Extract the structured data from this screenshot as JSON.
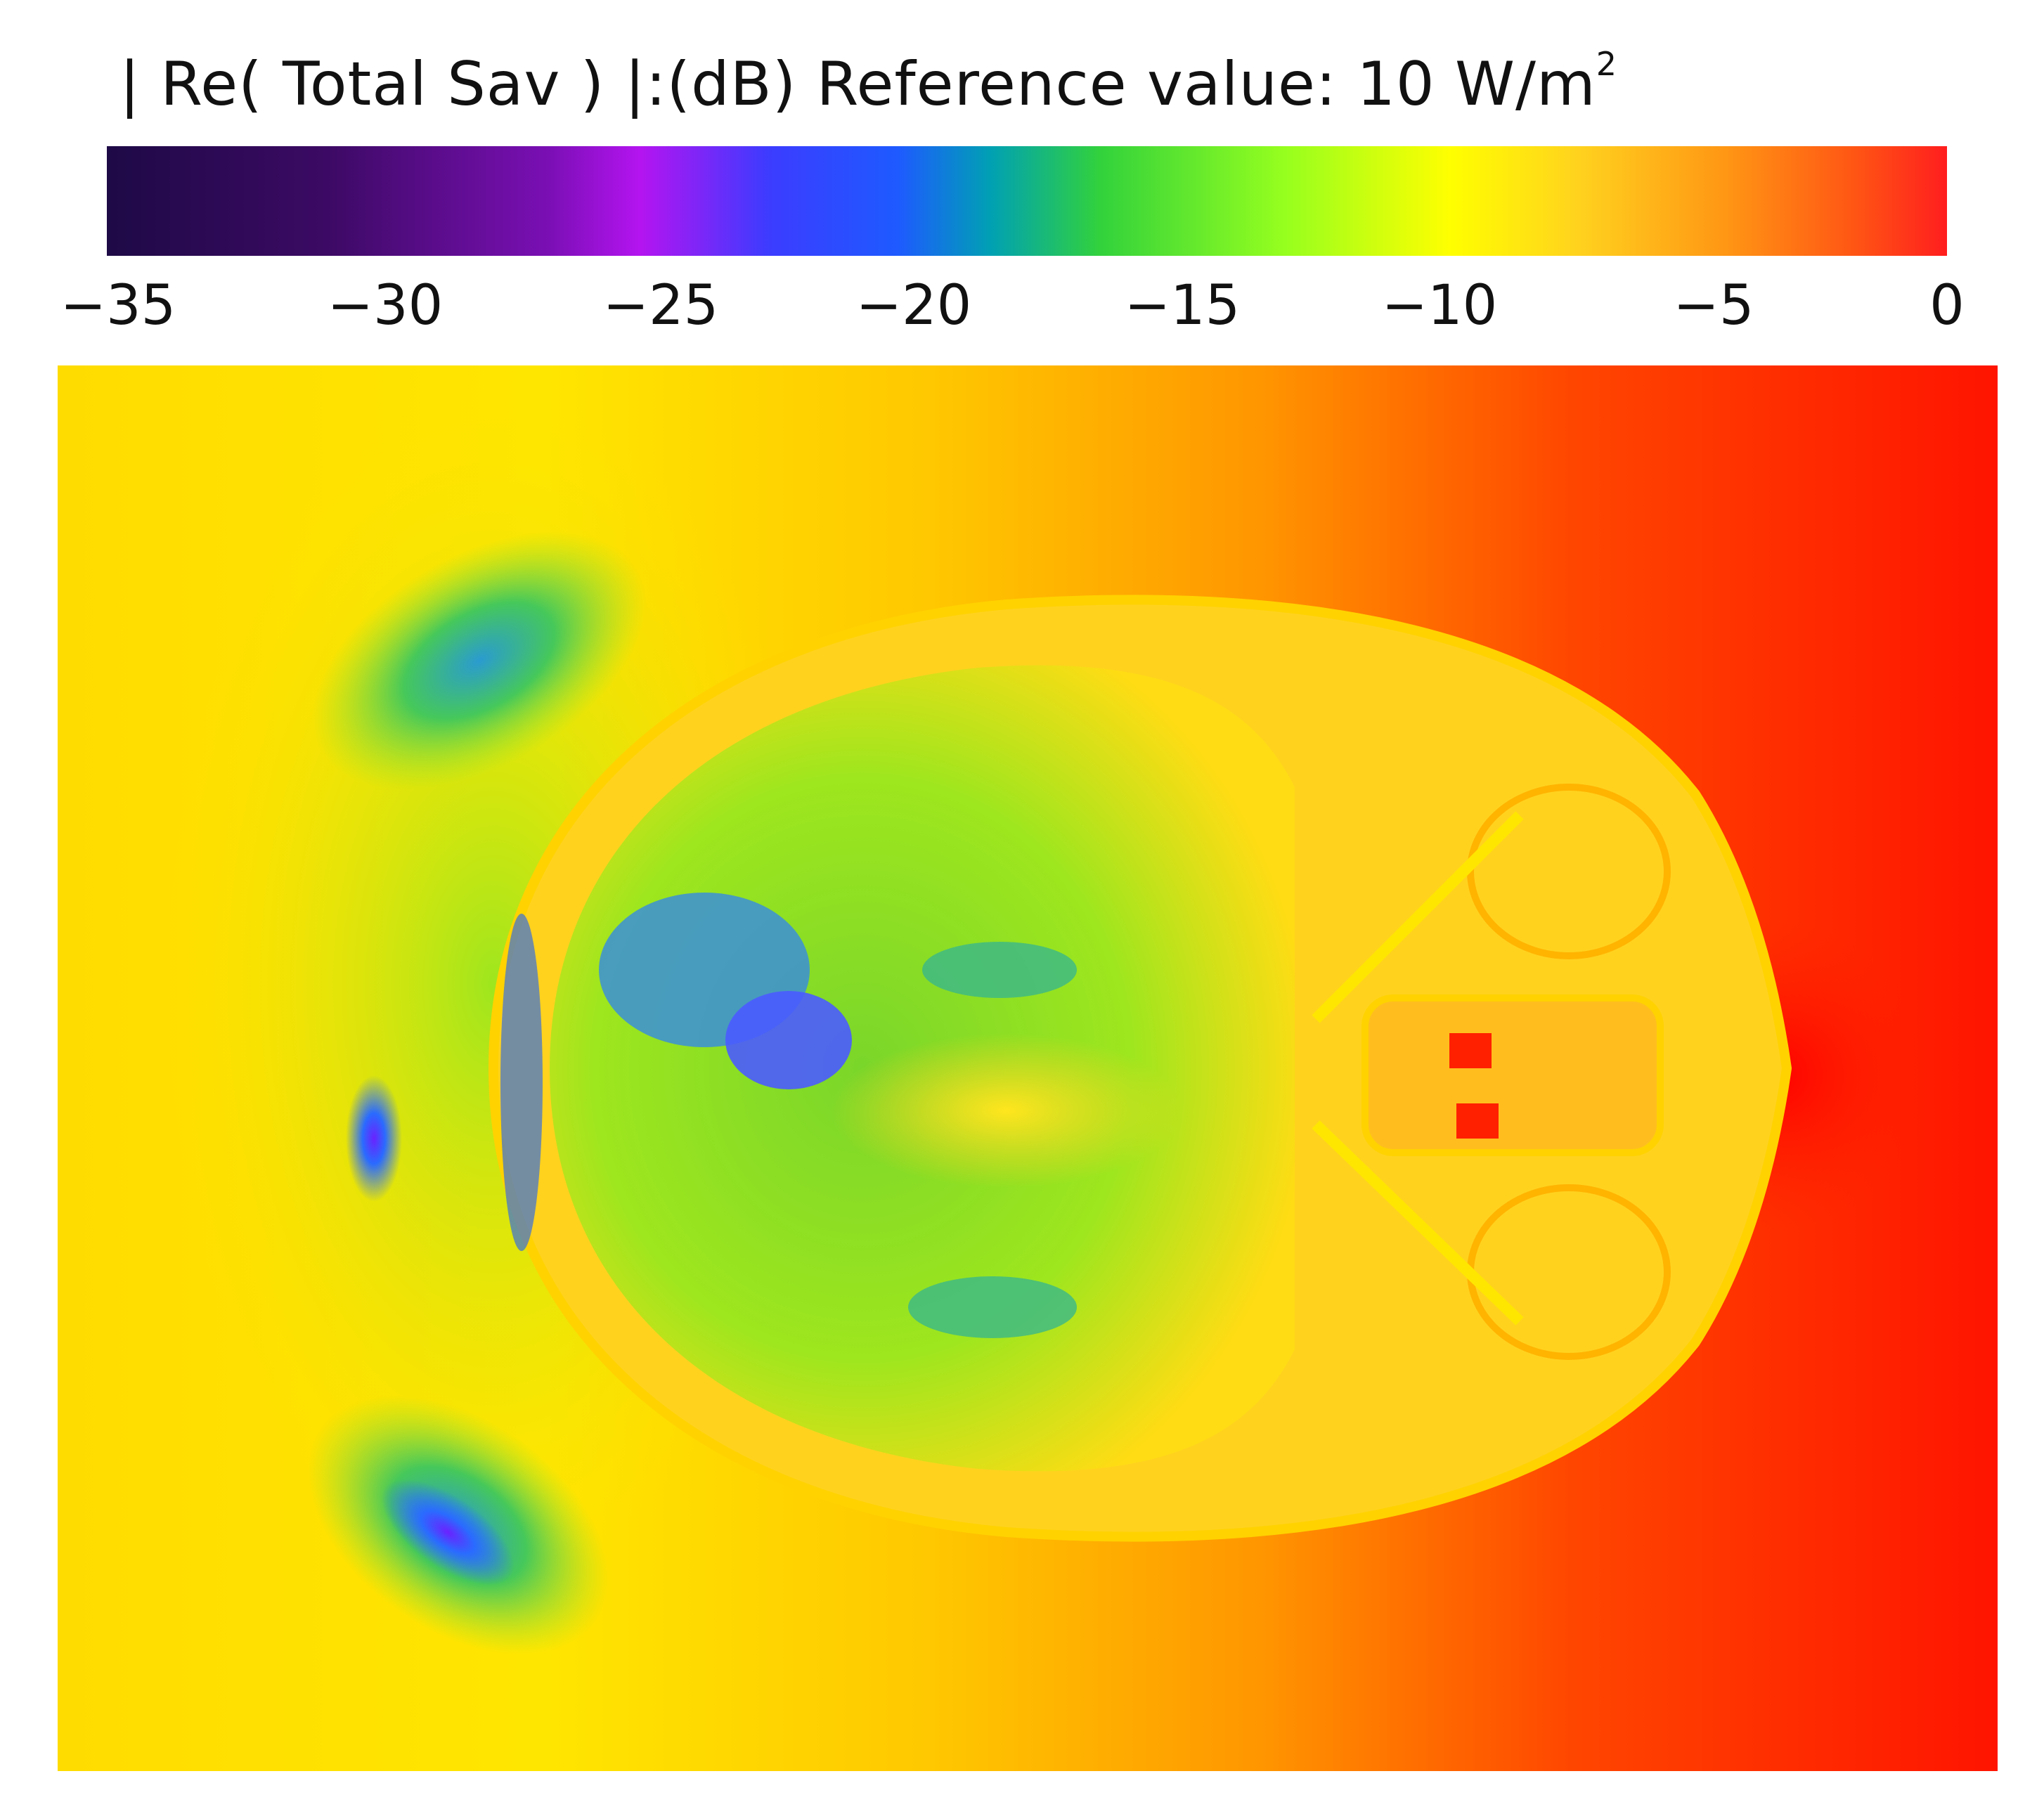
{
  "colorbar": {
    "title_main": "| Re( Total Sav ) |:(dB) Reference value: 10 W/m",
    "title_sup": "2",
    "tick_labels": [
      "−35",
      "−30",
      "−25",
      "−20",
      "−15",
      "−10",
      "−5",
      "0"
    ],
    "range_db": [
      -35,
      0
    ],
    "colors": {
      "min": "#1e0a46",
      "purple": "#b414f0",
      "blue": "#1e5aff",
      "green": "#32d23c",
      "yellow": "#ffff00",
      "orange": "#ff9614",
      "max": "#ff1e1e"
    }
  },
  "field_map": {
    "colormap": "dB scale, dark purple (low) to red (high)",
    "background_gradient": [
      "#ffdc00",
      "#ffe600",
      "#ffc800",
      "#ff8c00",
      "#ff3c00",
      "#ff1400"
    ]
  }
}
